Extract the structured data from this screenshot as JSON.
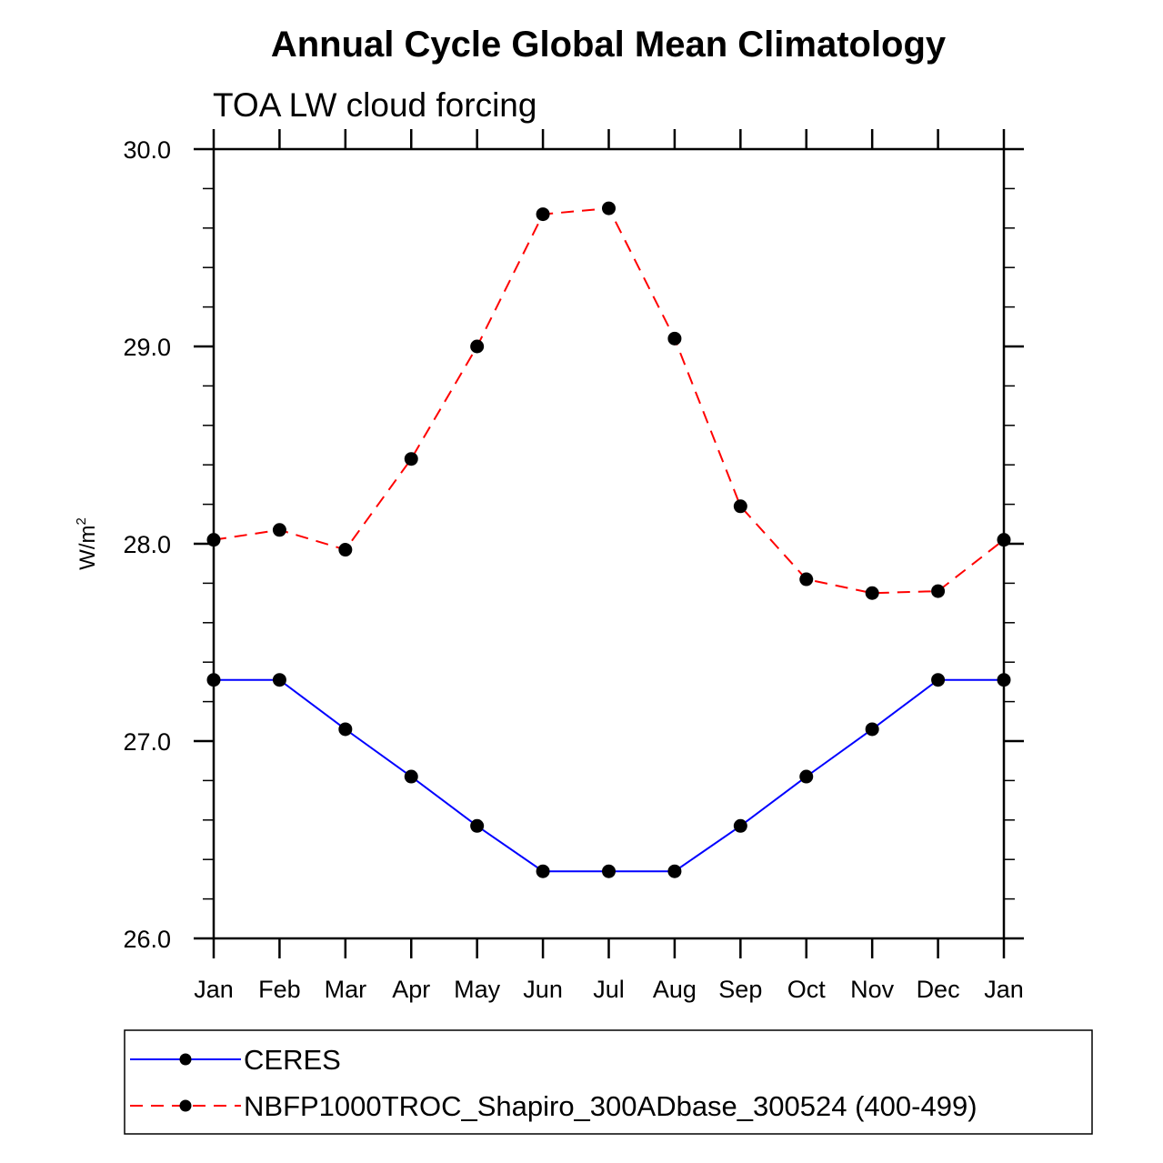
{
  "chart_data": {
    "type": "line",
    "title": "Annual Cycle Global Mean Climatology",
    "subtitle": "TOA LW cloud forcing",
    "xlabel": "",
    "ylabel": "W/m",
    "ylabel_sup": "2",
    "categories": [
      "Jan",
      "Feb",
      "Mar",
      "Apr",
      "May",
      "Jun",
      "Jul",
      "Aug",
      "Sep",
      "Oct",
      "Nov",
      "Dec",
      "Jan"
    ],
    "ylim": [
      26.0,
      30.0
    ],
    "yticks": [
      "26.0",
      "27.0",
      "28.0",
      "29.0",
      "30.0"
    ],
    "grid": false,
    "legend_position": "bottom",
    "series": [
      {
        "name": "CERES",
        "color": "#0000ff",
        "style": "solid",
        "marker": "circle",
        "values": [
          27.31,
          27.31,
          27.06,
          26.82,
          26.57,
          26.34,
          26.34,
          26.34,
          26.57,
          26.82,
          27.06,
          27.31,
          27.31
        ]
      },
      {
        "name": "NBFP1000TROC_Shapiro_300ADbase_300524 (400-499)",
        "color": "#ff0000",
        "style": "dashed",
        "marker": "circle",
        "values": [
          28.02,
          28.07,
          27.97,
          28.43,
          29.0,
          29.67,
          29.7,
          29.04,
          28.19,
          27.82,
          27.75,
          27.76,
          28.02
        ]
      }
    ]
  }
}
